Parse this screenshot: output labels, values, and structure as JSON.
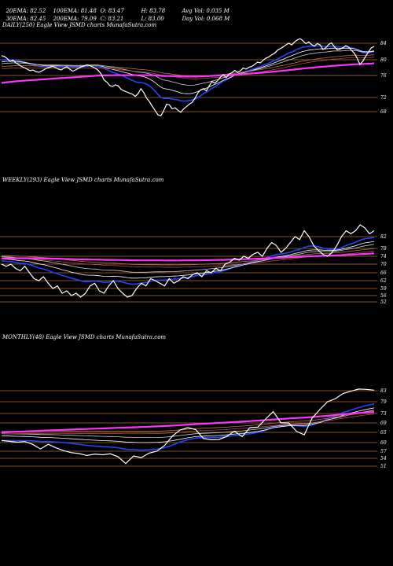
{
  "header": {
    "row1": [
      "20EMA: 82.52",
      "100EMA: 81.48",
      "O: 83.47",
      "H: 83.78",
      "Avg Vol: 0.035 M"
    ],
    "row2": [
      "30EMA: 82.45",
      "200EMA: 79.09",
      "C: 83.21",
      "L: 83.00",
      "Day Vol: 0.068 M"
    ]
  },
  "chart_data": [
    {
      "type": "line",
      "title": "DAILY(250) Eagle  View  JSMD charts MunafaSutra.com",
      "y_ticks": [
        84,
        80,
        76,
        72,
        68
      ],
      "ylim": [
        65.5,
        86.5
      ],
      "price": [
        81,
        80.8,
        80.3,
        79.6,
        79.9,
        79.2,
        78.8,
        78.3,
        78,
        77.6,
        77.2,
        77.4,
        77,
        76.8,
        77.1,
        77.5,
        77.9,
        78.1,
        78.3,
        78,
        77.6,
        77.4,
        77.9,
        78.2,
        77.6,
        77.1,
        77.4,
        77.8,
        78.2,
        78.4,
        78.7,
        78.5,
        78.2,
        77.8,
        77.3,
        76.4,
        75.2,
        74.8,
        74.2,
        74,
        74.3,
        74.1,
        73.5,
        73.2,
        73,
        72.8,
        72.6,
        72.2,
        72.7,
        73.6,
        72.9,
        71.8,
        70.8,
        69.5,
        68.3,
        67.1,
        66.8,
        68.2,
        70.1,
        69.9,
        68.8,
        69.1,
        68.4,
        67.8,
        68.8,
        69.4,
        70.1,
        70.6,
        71.7,
        72.8,
        73.4,
        73.6,
        73.2,
        74.1,
        74.9,
        74.6,
        75.1,
        75.7,
        76.2,
        75.6,
        76.4,
        76.7,
        77.3,
        76.8,
        77.2,
        77.9,
        77.6,
        78.1,
        78.3,
        78.8,
        79.4,
        79.2,
        79.9,
        80.4,
        80.7,
        81.2,
        81.6,
        82.3,
        82.7,
        83.1,
        83.6,
        84,
        83.6,
        84.3,
        84.8,
        85.1,
        84.6,
        83.9,
        84.3,
        83.7,
        83.3,
        83.9,
        83.6,
        82.5,
        82.9,
        83.7,
        84.1,
        83.2,
        82.4,
        82.6,
        82.9,
        83.4,
        83.1,
        82.3,
        81.6,
        80.4,
        78.8,
        79.6,
        80.8,
        81.9,
        82.9,
        83.2
      ],
      "series": [
        {
          "name": "EMA 20",
          "color": "#2244ff",
          "from": 79.7,
          "to": 82.5,
          "trough": 69.5
        },
        {
          "name": "EMA 30",
          "color": "#ffffff",
          "from": 79.3,
          "to": 82.4,
          "trough": 71.2
        },
        {
          "name": "EMA 50",
          "color": "#cccccc",
          "from": 78.9,
          "to": 82.1,
          "trough": 72.3
        },
        {
          "name": "EMA 100",
          "color": "#b07840",
          "from": 78.2,
          "to": 81.4,
          "trough": 73.6
        },
        {
          "name": "EMA 200",
          "color": "#ff33ff",
          "from": 74.6,
          "to": 79.1,
          "trough": 74.9
        }
      ]
    },
    {
      "type": "line",
      "title": "WEEKLY(293) Eagle  View  JSMD charts MunafaSutra.com",
      "y_ticks": [
        82,
        78,
        74,
        70,
        66,
        62,
        59,
        56,
        52
      ],
      "price": [
        70,
        69,
        70,
        68,
        67,
        69,
        66,
        63,
        62,
        64,
        61,
        59,
        60,
        57,
        58,
        56,
        57,
        55,
        57,
        60,
        61,
        58,
        57,
        60,
        62,
        59,
        57,
        55,
        56,
        59,
        61,
        60,
        63,
        62,
        61,
        60,
        63,
        61,
        62,
        64,
        63,
        65,
        66,
        64,
        67,
        66,
        68,
        67,
        70,
        71,
        73,
        72,
        74,
        73,
        75,
        76,
        74,
        78,
        80,
        79,
        76,
        78,
        80,
        82,
        81,
        84,
        82,
        79,
        77,
        75,
        74,
        76,
        79,
        82,
        84,
        83,
        84,
        86,
        85,
        83,
        84
      ],
      "series": [
        {
          "name": "EMA 20",
          "color": "#2244ff",
          "from": 72,
          "to": 79
        },
        {
          "name": "EMA 30",
          "color": "#ffffff",
          "from": 73,
          "to": 79
        },
        {
          "name": "EMA 50",
          "color": "#cccccc",
          "from": 74,
          "to": 80
        },
        {
          "name": "EMA 100",
          "color": "#b07840",
          "from": 74.5,
          "to": 80.5
        },
        {
          "name": "EMA 200",
          "color": "#ff33ff",
          "from": 73,
          "to": 77
        }
      ]
    },
    {
      "type": "line",
      "title": "MONTHLY(48) Eagle  View  JSMD charts MunafaSutra.com",
      "y_ticks": [
        83,
        79,
        73,
        69,
        65,
        60,
        57,
        54,
        51
      ],
      "price": [
        61,
        60.6,
        60.2,
        60.5,
        59.4,
        57.8,
        59.4,
        58.2,
        57.2,
        56.4,
        56,
        55.2,
        55.8,
        55.5,
        55.9,
        54.7,
        52,
        55,
        54.3,
        56.2,
        57,
        59,
        63.2,
        66,
        67,
        66.2,
        62,
        61.4,
        61.5,
        63,
        65.5,
        62.9,
        67,
        67.2,
        70.6,
        74,
        69,
        69,
        65.4,
        63.8,
        71,
        75,
        79,
        80.1,
        82,
        82.8,
        83.6,
        83.5,
        83.2
      ],
      "series": [
        {
          "name": "EMA 20",
          "color": "#2244ff",
          "from": 61,
          "to": 78
        },
        {
          "name": "EMA 30",
          "color": "#ffffff",
          "from": 63.5,
          "to": 79
        },
        {
          "name": "EMA 50",
          "color": "#cccccc",
          "from": 64.5,
          "to": 79.5
        },
        {
          "name": "EMA 100",
          "color": "#b07840",
          "from": 65.5,
          "to": 80.5
        },
        {
          "name": "EMA 200",
          "color": "#ff33ff",
          "from": 65,
          "to": 78
        }
      ]
    }
  ]
}
